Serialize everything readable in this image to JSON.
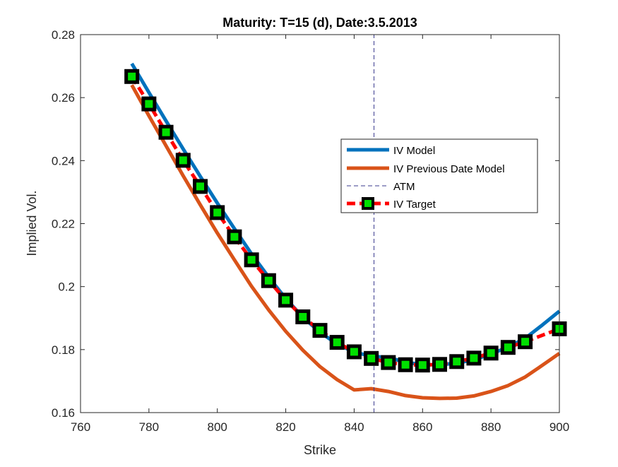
{
  "chart_data": {
    "type": "line",
    "title": "Maturity: T=15 (d), Date:3.5.2013",
    "xlabel": "Strike",
    "ylabel": "Implied Vol.",
    "xlim": [
      760,
      900
    ],
    "ylim": [
      0.16,
      0.28
    ],
    "xticks": [
      760,
      780,
      800,
      820,
      840,
      860,
      880,
      900
    ],
    "xtick_labels": [
      "760",
      "780",
      "800",
      "820",
      "840",
      "860",
      "880",
      "900"
    ],
    "yticks": [
      0.16,
      0.18,
      0.2,
      0.22,
      0.24,
      0.26,
      0.28
    ],
    "ytick_labels": [
      "0.16",
      "0.18",
      "0.2",
      "0.22",
      "0.24",
      "0.26",
      "0.28"
    ],
    "grid": false,
    "box": true,
    "legend_position": "right",
    "series": [
      {
        "name": "IV Model",
        "color": "#0072BD",
        "style": "solid",
        "x": [
          775,
          780,
          785,
          790,
          795,
          800,
          805,
          810,
          815,
          820,
          825,
          830,
          835,
          840,
          845,
          850,
          855,
          860,
          865,
          870,
          875,
          880,
          885,
          890,
          895,
          900
        ],
        "y": [
          0.2708,
          0.2616,
          0.2526,
          0.2437,
          0.235,
          0.2265,
          0.2184,
          0.2104,
          0.203,
          0.1962,
          0.1903,
          0.1855,
          0.1818,
          0.1792,
          0.1779,
          0.1775,
          0.176,
          0.1752,
          0.1752,
          0.1757,
          0.1768,
          0.1786,
          0.1808,
          0.1836,
          0.1878,
          0.1922
        ]
      },
      {
        "name": "IV Previous Date Model",
        "color": "#D95319",
        "style": "solid",
        "x": [
          775,
          780,
          785,
          790,
          795,
          800,
          805,
          810,
          815,
          820,
          825,
          830,
          835,
          840,
          845,
          850,
          855,
          860,
          865,
          870,
          875,
          880,
          885,
          890,
          895,
          900
        ],
        "y": [
          0.264,
          0.2542,
          0.2447,
          0.2352,
          0.226,
          0.217,
          0.2085,
          0.2001,
          0.1926,
          0.1858,
          0.1798,
          0.1746,
          0.1705,
          0.1672,
          0.1676,
          0.1667,
          0.1654,
          0.1647,
          0.1645,
          0.1646,
          0.1653,
          0.1667,
          0.1686,
          0.1713,
          0.175,
          0.1788
        ]
      },
      {
        "name": "ATM",
        "color": "#3B3B8F",
        "style": "dashed-vertical",
        "x": [
          845.8,
          845.8
        ],
        "y": [
          0.16,
          0.28
        ]
      },
      {
        "name": "IV Target",
        "color": "#FF0000",
        "marker": "square",
        "marker_edge": "#000000",
        "marker_face": "#00E000",
        "style": "dashed",
        "x": [
          775,
          780,
          785,
          790,
          795,
          800,
          805,
          810,
          815,
          820,
          825,
          830,
          835,
          840,
          845,
          850,
          855,
          860,
          865,
          870,
          875,
          880,
          885,
          890,
          900
        ],
        "y": [
          0.2667,
          0.258,
          0.249,
          0.2401,
          0.2318,
          0.2235,
          0.2158,
          0.2085,
          0.2019,
          0.1957,
          0.1904,
          0.1861,
          0.1823,
          0.1793,
          0.1772,
          0.1759,
          0.1752,
          0.1751,
          0.1753,
          0.1762,
          0.1773,
          0.1789,
          0.1807,
          0.1825,
          0.1866
        ]
      }
    ]
  }
}
